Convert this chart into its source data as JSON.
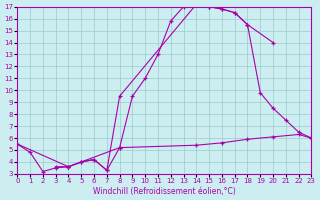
{
  "xlabel": "Windchill (Refroidissement éolien,°C)",
  "bg_color": "#cceef0",
  "line_color": "#aa00aa",
  "grid_color": "#99cccc",
  "xlim": [
    0,
    23
  ],
  "ylim": [
    3,
    17
  ],
  "line1_x": [
    0,
    1,
    2,
    3,
    4,
    5,
    6,
    7,
    8,
    9,
    10,
    11,
    12,
    13,
    14,
    15,
    16,
    17,
    18,
    20
  ],
  "line1_y": [
    5.5,
    4.8,
    3.2,
    3.5,
    3.6,
    4.0,
    4.2,
    3.3,
    5.2,
    9.5,
    11.0,
    13.0,
    15.8,
    17.0,
    17.2,
    17.0,
    16.8,
    16.5,
    15.5,
    14.0
  ],
  "line2_x": [
    3,
    4,
    5,
    6,
    7,
    8,
    14,
    15,
    16,
    17,
    18,
    19,
    20,
    21,
    22,
    23
  ],
  "line2_y": [
    3.6,
    3.6,
    4.0,
    4.2,
    3.3,
    9.5,
    17.2,
    17.0,
    16.8,
    16.5,
    15.5,
    9.8,
    8.5,
    7.5,
    6.5,
    6.0
  ],
  "line3_x": [
    0,
    4,
    8,
    14,
    16,
    18,
    20,
    22,
    23
  ],
  "line3_y": [
    5.5,
    3.6,
    5.2,
    5.4,
    5.6,
    5.9,
    6.1,
    6.3,
    6.0
  ]
}
